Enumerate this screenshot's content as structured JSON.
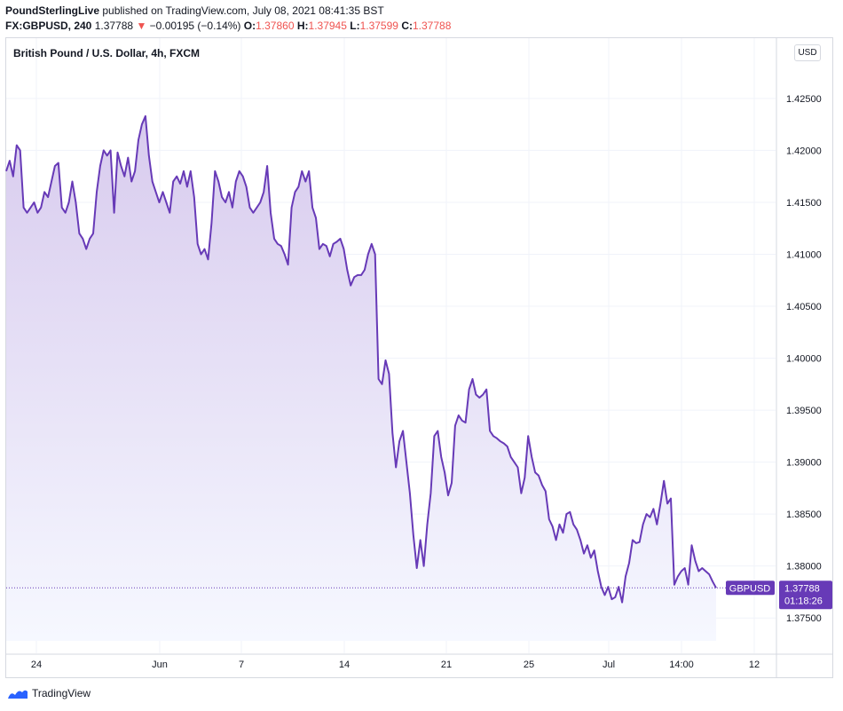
{
  "header": {
    "author": "PoundSterlingLive",
    "published": "published on TradingView.com, July 08, 2021 08:41:35 BST",
    "symbol": "FX:GBPUSD, 240",
    "last": "1.37788",
    "change_arrow": "▼",
    "change": "−0.00195 (−0.14%)",
    "o_label": "O:",
    "o_value": "1.37860",
    "h_label": "H:",
    "h_value": "1.37945",
    "l_label": "L:",
    "l_value": "1.37599",
    "c_label": "C:",
    "c_value": "1.37788"
  },
  "chart_title": "British Pound / U.S. Dollar, 4h, FXCM",
  "currency": "USD",
  "footer_brand": "TradingView",
  "colors": {
    "line": "#673ab7",
    "fill_top": "#d8cbee",
    "fill_bottom": "#f3f6ff",
    "grid": "#f0f3fa",
    "down": "#ef5350",
    "badge": "#673ab7"
  },
  "chart_data": {
    "type": "area",
    "title": "British Pound / U.S. Dollar, 4h, FXCM",
    "series": [
      {
        "name": "GBPUSD",
        "last_value": "1.37788",
        "countdown": "01:18:26",
        "values": [
          1.418,
          1.419,
          1.4175,
          1.4205,
          1.42,
          1.4145,
          1.414,
          1.4145,
          1.415,
          1.414,
          1.4145,
          1.416,
          1.4155,
          1.417,
          1.4185,
          1.4188,
          1.4145,
          1.414,
          1.415,
          1.417,
          1.415,
          1.412,
          1.4115,
          1.4105,
          1.4115,
          1.412,
          1.416,
          1.4185,
          1.42,
          1.4195,
          1.42,
          1.414,
          1.4198,
          1.4185,
          1.4175,
          1.4193,
          1.417,
          1.418,
          1.421,
          1.4225,
          1.4233,
          1.4195,
          1.417,
          1.416,
          1.415,
          1.416,
          1.415,
          1.414,
          1.417,
          1.4175,
          1.4168,
          1.418,
          1.4165,
          1.418,
          1.4155,
          1.411,
          1.41,
          1.4105,
          1.4095,
          1.413,
          1.418,
          1.417,
          1.4155,
          1.415,
          1.416,
          1.4145,
          1.417,
          1.418,
          1.4175,
          1.4165,
          1.4145,
          1.414,
          1.4145,
          1.415,
          1.416,
          1.4185,
          1.414,
          1.4115,
          1.411,
          1.4108,
          1.41,
          1.409,
          1.4145,
          1.416,
          1.4165,
          1.418,
          1.417,
          1.418,
          1.4145,
          1.4135,
          1.4105,
          1.411,
          1.4108,
          1.4098,
          1.411,
          1.4112,
          1.4115,
          1.4105,
          1.4085,
          1.407,
          1.4078,
          1.408,
          1.408,
          1.4085,
          1.41,
          1.411,
          1.41,
          1.398,
          1.3975,
          1.3998,
          1.3985,
          1.3928,
          1.3895,
          1.392,
          1.393,
          1.39,
          1.387,
          1.383,
          1.3798,
          1.3825,
          1.38,
          1.384,
          1.387,
          1.3925,
          1.393,
          1.3905,
          1.389,
          1.3868,
          1.388,
          1.3935,
          1.3945,
          1.394,
          1.3938,
          1.397,
          1.398,
          1.3965,
          1.3962,
          1.3965,
          1.397,
          1.393,
          1.3925,
          1.3923,
          1.392,
          1.3918,
          1.3915,
          1.3905,
          1.39,
          1.3895,
          1.387,
          1.3885,
          1.3925,
          1.3905,
          1.389,
          1.3887,
          1.3878,
          1.3872,
          1.3845,
          1.3838,
          1.3825,
          1.384,
          1.3832,
          1.385,
          1.3852,
          1.384,
          1.3835,
          1.3825,
          1.3812,
          1.382,
          1.3808,
          1.3815,
          1.3795,
          1.378,
          1.3772,
          1.378,
          1.3768,
          1.377,
          1.378,
          1.3765,
          1.379,
          1.3803,
          1.3825,
          1.3822,
          1.3823,
          1.384,
          1.385,
          1.3847,
          1.3855,
          1.384,
          1.386,
          1.3882,
          1.386,
          1.3865,
          1.3782,
          1.379,
          1.3795,
          1.3798,
          1.3782,
          1.382,
          1.3805,
          1.3795,
          1.3798,
          1.3795,
          1.3792,
          1.3785,
          1.3779
        ]
      }
    ],
    "x_ticks": [
      "24",
      "Jun",
      "7",
      "14",
      "21",
      "25",
      "Jul",
      "14:00",
      "12"
    ],
    "y_ticks": [
      "1.42500",
      "1.42000",
      "1.41500",
      "1.41000",
      "1.40500",
      "1.40000",
      "1.39500",
      "1.39000",
      "1.38500",
      "1.38000",
      "1.37500"
    ],
    "ylim": [
      1.3716,
      1.4308
    ],
    "grid": true
  }
}
